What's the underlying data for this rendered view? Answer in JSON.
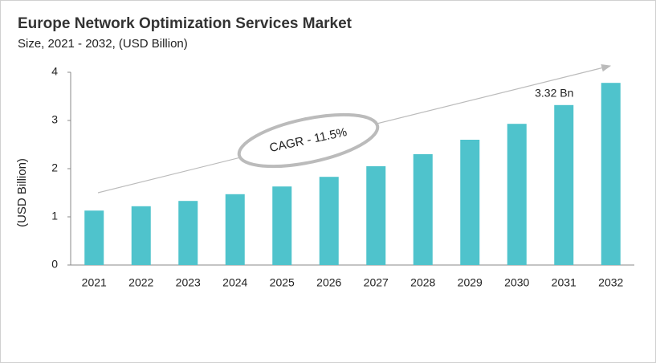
{
  "chart_data": {
    "type": "bar",
    "title": "Europe Network Optimization Services Market",
    "subtitle": "Size, 2021 - 2032, (USD Billion)",
    "y_label": "(USD Billion)",
    "annotation": "CAGR - 11.5%",
    "categories": [
      "2021",
      "2022",
      "2023",
      "2024",
      "2025",
      "2026",
      "2027",
      "2028",
      "2029",
      "2030",
      "2031",
      "2032"
    ],
    "values": [
      1.13,
      1.22,
      1.33,
      1.47,
      1.63,
      1.83,
      2.05,
      2.3,
      2.6,
      2.93,
      3.32,
      3.78
    ],
    "value_labels": [
      null,
      null,
      null,
      null,
      null,
      null,
      null,
      null,
      null,
      null,
      "3.32 Bn",
      null
    ],
    "color": "#4fc3cc",
    "ylim": [
      0,
      4
    ],
    "yticks": [
      0,
      1,
      2,
      3,
      4
    ],
    "grid": false
  }
}
